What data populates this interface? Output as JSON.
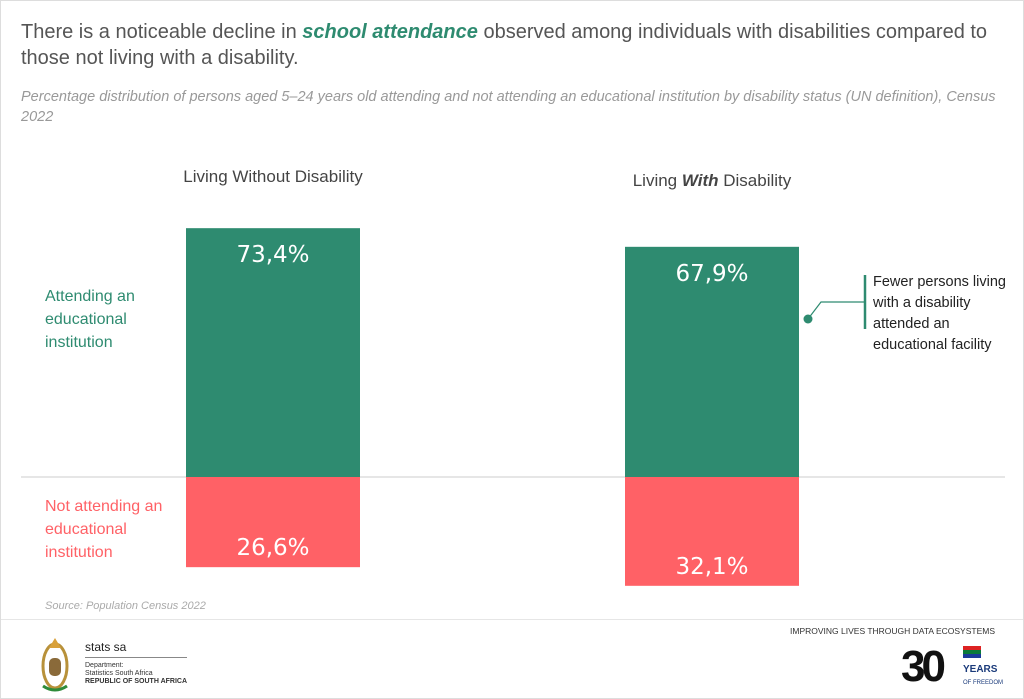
{
  "title": {
    "before": "There is a noticeable decline in ",
    "emph": "school attendance",
    "after": " observed among individuals with disabilities compared to those not living with a disability."
  },
  "subtitle": "Percentage distribution of persons aged 5–24 years old attending and not attending an educational institution by disability status (UN definition), Census 2022",
  "chart_data": {
    "type": "bar",
    "stacked": "diverging",
    "categories": [
      "Living Without Disability",
      "Living With Disability"
    ],
    "category_labels": [
      {
        "pre": "Living Without Disability",
        "emph": "",
        "post": ""
      },
      {
        "pre": "Living ",
        "emph": "With",
        "post": " Disability"
      }
    ],
    "series": [
      {
        "name": "Attending an educational institution",
        "values": [
          73.4,
          67.9
        ],
        "labels": [
          "73,4%",
          "67,9%"
        ],
        "color": "#2e8b70"
      },
      {
        "name": "Not attending an educational institution",
        "values": [
          26.6,
          32.1
        ],
        "labels": [
          "26,6%",
          "32,1%"
        ],
        "color": "#ff6166"
      }
    ],
    "annotation": "Fewer persons living with a disability attended an educational facility"
  },
  "source": "Source: Population Census 2022",
  "footer": {
    "tagline": "IMPROVING LIVES THROUGH DATA ECOSYSTEMS",
    "logo_name": "stats sa",
    "dept": [
      "Department:",
      "Statistics South Africa",
      "REPUBLIC OF SOUTH AFRICA"
    ],
    "badge": {
      "number": "30",
      "line1": "YEARS",
      "line2": "OF FREEDOM"
    }
  }
}
